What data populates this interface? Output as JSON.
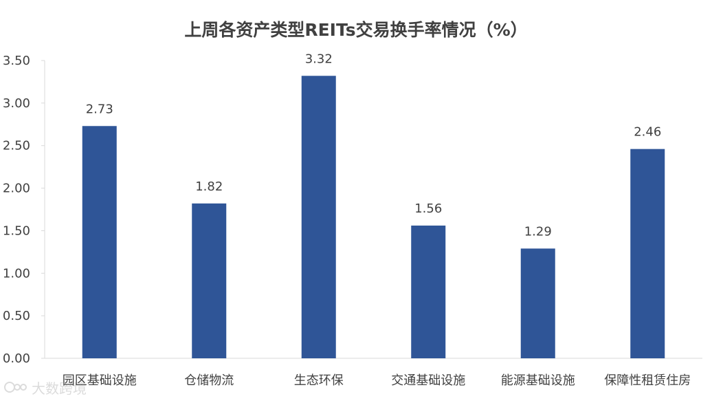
{
  "chart_data": {
    "type": "bar",
    "title": "上周各资产类型REITs交易换手率情况（%）",
    "categories": [
      "园区基础设施",
      "仓储物流",
      "生态环保",
      "交通基础设施",
      "能源基础设施",
      "保障性租赁住房"
    ],
    "values": [
      2.73,
      1.82,
      3.32,
      1.56,
      1.29,
      2.46
    ],
    "value_labels": [
      "2.73",
      "1.82",
      "3.32",
      "1.56",
      "1.29",
      "2.46"
    ],
    "ylim": [
      0,
      3.5
    ],
    "yticks": [
      "0.00",
      "0.50",
      "1.00",
      "1.50",
      "2.00",
      "2.50",
      "3.00",
      "3.50"
    ],
    "ytick_values": [
      0,
      0.5,
      1.0,
      1.5,
      2.0,
      2.5,
      3.0,
      3.5
    ],
    "xlabel": "",
    "ylabel": "",
    "grid": false,
    "legend": "none",
    "bar_color": "#2f5597"
  },
  "watermark": {
    "icon": "watermark-logo-icon",
    "text": "大数跨境"
  }
}
